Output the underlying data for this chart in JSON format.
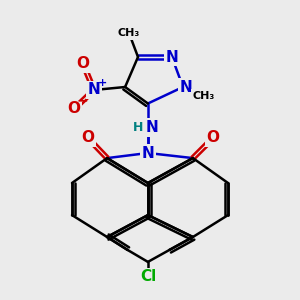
{
  "bg_color": "#ebebeb",
  "bond_color": "#000000",
  "n_color": "#0000cc",
  "o_color": "#cc0000",
  "cl_color": "#00aa00",
  "h_color": "#008080",
  "line_width": 1.8,
  "font_size": 11,
  "font_size_small": 9,
  "fig_w": 3.0,
  "fig_h": 3.0,
  "dpi": 100,
  "xlim": [
    0,
    10
  ],
  "ylim": [
    0,
    10
  ],
  "double_sep": 0.1
}
